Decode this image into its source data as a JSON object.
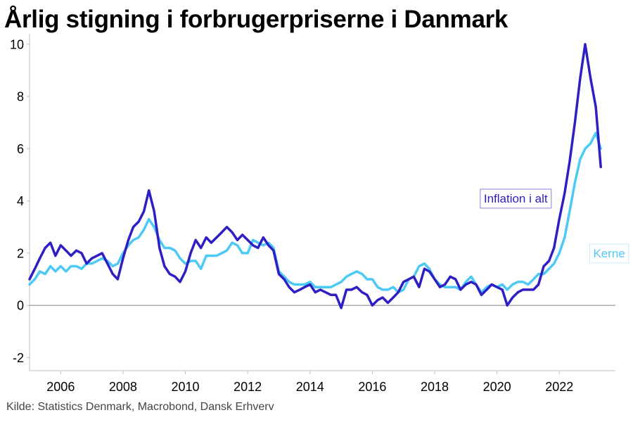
{
  "chart_data": {
    "type": "line",
    "title": "Årlig stigning i forbrugerpriserne i Danmark",
    "source": "Kilde: Statistics Denmark, Macrobond, Dansk Erhverv",
    "xlim": [
      2005,
      2023.8
    ],
    "ylim": [
      -2.5,
      10.4
    ],
    "x_ticks": [
      "2006",
      "2008",
      "2010",
      "2012",
      "2014",
      "2016",
      "2018",
      "2020",
      "2022"
    ],
    "y_ticks": [
      "-2",
      "0",
      "2",
      "4",
      "6",
      "8",
      "10"
    ],
    "grid": false,
    "zero_line": true,
    "legend": "inline labels",
    "series": [
      {
        "name": "Inflation i alt",
        "color": "#2e1fc4",
        "x": [
          2005.0,
          2005.17,
          2005.33,
          2005.5,
          2005.67,
          2005.83,
          2006.0,
          2006.17,
          2006.33,
          2006.5,
          2006.67,
          2006.83,
          2007.0,
          2007.17,
          2007.33,
          2007.5,
          2007.67,
          2007.83,
          2008.0,
          2008.17,
          2008.33,
          2008.5,
          2008.67,
          2008.83,
          2009.0,
          2009.17,
          2009.33,
          2009.5,
          2009.67,
          2009.83,
          2010.0,
          2010.17,
          2010.33,
          2010.5,
          2010.67,
          2010.83,
          2011.0,
          2011.17,
          2011.33,
          2011.5,
          2011.67,
          2011.83,
          2012.0,
          2012.17,
          2012.33,
          2012.5,
          2012.67,
          2012.83,
          2013.0,
          2013.17,
          2013.33,
          2013.5,
          2013.67,
          2013.83,
          2014.0,
          2014.17,
          2014.33,
          2014.5,
          2014.67,
          2014.83,
          2015.0,
          2015.17,
          2015.33,
          2015.5,
          2015.67,
          2015.83,
          2016.0,
          2016.17,
          2016.33,
          2016.5,
          2016.67,
          2016.83,
          2017.0,
          2017.17,
          2017.33,
          2017.5,
          2017.67,
          2017.83,
          2018.0,
          2018.17,
          2018.33,
          2018.5,
          2018.67,
          2018.83,
          2019.0,
          2019.17,
          2019.33,
          2019.5,
          2019.67,
          2019.83,
          2020.0,
          2020.17,
          2020.33,
          2020.5,
          2020.67,
          2020.83,
          2021.0,
          2021.17,
          2021.33,
          2021.5,
          2021.67,
          2021.83,
          2022.0,
          2022.17,
          2022.33,
          2022.5,
          2022.67,
          2022.83,
          2023.0,
          2023.17,
          2023.33
        ],
        "values": [
          1.0,
          1.4,
          1.8,
          2.2,
          2.4,
          1.9,
          2.3,
          2.1,
          1.9,
          2.1,
          2.0,
          1.6,
          1.8,
          1.9,
          2.0,
          1.6,
          1.2,
          1.0,
          1.8,
          2.5,
          3.0,
          3.2,
          3.6,
          4.4,
          3.6,
          2.2,
          1.5,
          1.2,
          1.1,
          0.9,
          1.3,
          2.0,
          2.5,
          2.2,
          2.6,
          2.4,
          2.6,
          2.8,
          3.0,
          2.8,
          2.5,
          2.7,
          2.5,
          2.3,
          2.2,
          2.6,
          2.3,
          2.1,
          1.2,
          1.0,
          0.7,
          0.5,
          0.6,
          0.7,
          0.8,
          0.5,
          0.6,
          0.5,
          0.4,
          0.4,
          -0.1,
          0.6,
          0.6,
          0.7,
          0.5,
          0.4,
          0.0,
          0.2,
          0.3,
          0.1,
          0.3,
          0.5,
          0.9,
          1.0,
          1.1,
          0.7,
          1.4,
          1.3,
          1.0,
          0.7,
          0.8,
          1.1,
          1.0,
          0.6,
          0.8,
          0.9,
          0.8,
          0.4,
          0.6,
          0.8,
          0.7,
          0.6,
          0.0,
          0.3,
          0.5,
          0.6,
          0.6,
          0.6,
          0.8,
          1.5,
          1.7,
          2.2,
          3.3,
          4.3,
          5.5,
          7.0,
          8.7,
          10.0,
          8.7,
          7.6,
          5.3
        ]
      },
      {
        "name": "Kerne",
        "color": "#4dc9f6",
        "x": [
          2005.0,
          2005.17,
          2005.33,
          2005.5,
          2005.67,
          2005.83,
          2006.0,
          2006.17,
          2006.33,
          2006.5,
          2006.67,
          2006.83,
          2007.0,
          2007.17,
          2007.33,
          2007.5,
          2007.67,
          2007.83,
          2008.0,
          2008.17,
          2008.33,
          2008.5,
          2008.67,
          2008.83,
          2009.0,
          2009.17,
          2009.33,
          2009.5,
          2009.67,
          2009.83,
          2010.0,
          2010.17,
          2010.33,
          2010.5,
          2010.67,
          2010.83,
          2011.0,
          2011.17,
          2011.33,
          2011.5,
          2011.67,
          2011.83,
          2012.0,
          2012.17,
          2012.33,
          2012.5,
          2012.67,
          2012.83,
          2013.0,
          2013.17,
          2013.33,
          2013.5,
          2013.67,
          2013.83,
          2014.0,
          2014.17,
          2014.33,
          2014.5,
          2014.67,
          2014.83,
          2015.0,
          2015.17,
          2015.33,
          2015.5,
          2015.67,
          2015.83,
          2016.0,
          2016.17,
          2016.33,
          2016.5,
          2016.67,
          2016.83,
          2017.0,
          2017.17,
          2017.33,
          2017.5,
          2017.67,
          2017.83,
          2018.0,
          2018.17,
          2018.33,
          2018.5,
          2018.67,
          2018.83,
          2019.0,
          2019.17,
          2019.33,
          2019.5,
          2019.67,
          2019.83,
          2020.0,
          2020.17,
          2020.33,
          2020.5,
          2020.67,
          2020.83,
          2021.0,
          2021.17,
          2021.33,
          2021.5,
          2021.67,
          2021.83,
          2022.0,
          2022.17,
          2022.33,
          2022.5,
          2022.67,
          2022.83,
          2023.0,
          2023.17,
          2023.33
        ],
        "values": [
          0.8,
          1.0,
          1.3,
          1.2,
          1.5,
          1.3,
          1.5,
          1.3,
          1.5,
          1.5,
          1.4,
          1.6,
          1.6,
          1.7,
          1.8,
          1.7,
          1.5,
          1.6,
          2.0,
          2.3,
          2.5,
          2.6,
          2.9,
          3.3,
          3.0,
          2.5,
          2.2,
          2.2,
          2.1,
          1.8,
          1.6,
          1.7,
          1.7,
          1.4,
          1.9,
          1.9,
          1.9,
          2.0,
          2.1,
          2.4,
          2.3,
          2.0,
          2.0,
          2.5,
          2.4,
          2.3,
          2.4,
          2.2,
          1.3,
          1.1,
          0.9,
          0.8,
          0.8,
          0.8,
          0.9,
          0.7,
          0.7,
          0.7,
          0.7,
          0.8,
          0.9,
          1.1,
          1.2,
          1.3,
          1.2,
          1.0,
          1.0,
          0.7,
          0.6,
          0.6,
          0.7,
          0.5,
          0.6,
          1.0,
          1.1,
          1.5,
          1.6,
          1.4,
          1.0,
          0.8,
          0.7,
          0.7,
          0.7,
          0.6,
          0.9,
          1.1,
          0.8,
          0.5,
          0.7,
          0.8,
          0.7,
          0.8,
          0.6,
          0.8,
          0.9,
          0.9,
          0.8,
          1.0,
          1.2,
          1.2,
          1.4,
          1.6,
          2.0,
          2.6,
          3.6,
          4.7,
          5.6,
          6.0,
          6.2,
          6.6,
          6.0
        ]
      }
    ],
    "annotations": [
      {
        "text": "Inflation i alt",
        "series": 0,
        "x": 2020.6,
        "y": 4.1,
        "color": "#2e1fc4",
        "border": "#8a80e0"
      },
      {
        "text": "Kerne",
        "series": 1,
        "x": 2023.6,
        "y": 2.0,
        "color": "#4dc9f6",
        "border": "#c9ecfb"
      }
    ]
  }
}
